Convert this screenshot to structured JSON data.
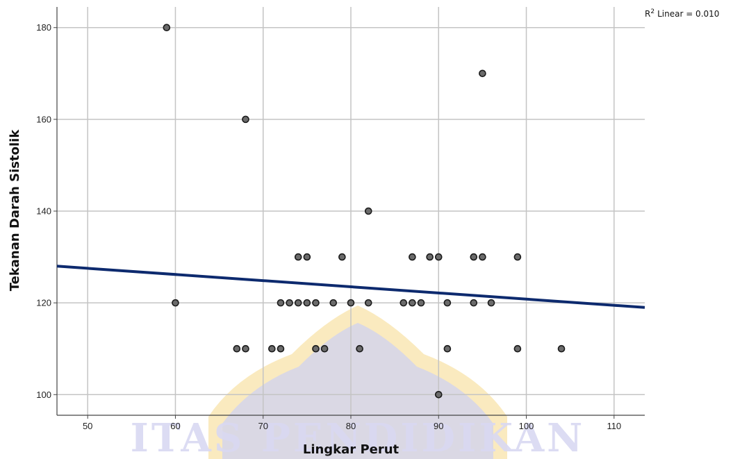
{
  "chart_data": {
    "type": "scatter",
    "title": "",
    "xlabel": "Lingkar Perut",
    "ylabel": "Tekanan Darah Sistolik",
    "xlim": [
      46.5,
      113.5
    ],
    "ylim": [
      95.5,
      184.5
    ],
    "xticks": [
      50,
      60,
      70,
      80,
      90,
      100,
      110
    ],
    "yticks": [
      100,
      120,
      140,
      160,
      180
    ],
    "grid": true,
    "points": [
      {
        "x": 59,
        "y": 180
      },
      {
        "x": 95,
        "y": 170
      },
      {
        "x": 68,
        "y": 160
      },
      {
        "x": 82,
        "y": 140
      },
      {
        "x": 74,
        "y": 130
      },
      {
        "x": 75,
        "y": 130
      },
      {
        "x": 79,
        "y": 130
      },
      {
        "x": 87,
        "y": 130
      },
      {
        "x": 89,
        "y": 130
      },
      {
        "x": 90,
        "y": 130
      },
      {
        "x": 94,
        "y": 130
      },
      {
        "x": 95,
        "y": 130
      },
      {
        "x": 99,
        "y": 130
      },
      {
        "x": 60,
        "y": 120
      },
      {
        "x": 72,
        "y": 120
      },
      {
        "x": 73,
        "y": 120
      },
      {
        "x": 74,
        "y": 120
      },
      {
        "x": 75,
        "y": 120
      },
      {
        "x": 76,
        "y": 120
      },
      {
        "x": 78,
        "y": 120
      },
      {
        "x": 80,
        "y": 120
      },
      {
        "x": 82,
        "y": 120
      },
      {
        "x": 86,
        "y": 120
      },
      {
        "x": 87,
        "y": 120
      },
      {
        "x": 88,
        "y": 120
      },
      {
        "x": 91,
        "y": 120
      },
      {
        "x": 94,
        "y": 120
      },
      {
        "x": 96,
        "y": 120
      },
      {
        "x": 67,
        "y": 110
      },
      {
        "x": 68,
        "y": 110
      },
      {
        "x": 71,
        "y": 110
      },
      {
        "x": 72,
        "y": 110
      },
      {
        "x": 76,
        "y": 110
      },
      {
        "x": 77,
        "y": 110
      },
      {
        "x": 81,
        "y": 110
      },
      {
        "x": 91,
        "y": 110
      },
      {
        "x": 99,
        "y": 110
      },
      {
        "x": 104,
        "y": 110
      },
      {
        "x": 90,
        "y": 100
      }
    ],
    "fit_line": {
      "type": "linear",
      "points": [
        {
          "x": 46.5,
          "y": 128
        },
        {
          "x": 113.5,
          "y": 119
        }
      ],
      "color": "#0d2a6e",
      "r2_label": "Linear = 0.010",
      "r2_prefix": "R",
      "r2_sup": "2"
    },
    "colors": {
      "marker_fill": "#6b6b6b",
      "marker_stroke": "#1a1a1a",
      "grid": "#c4c4c4",
      "axis": "#444444"
    }
  },
  "watermark": {
    "text": "ITAS PENDIDIKAN",
    "colors": {
      "gold": "#f5d98a",
      "blue": "#cfd2f0"
    }
  }
}
